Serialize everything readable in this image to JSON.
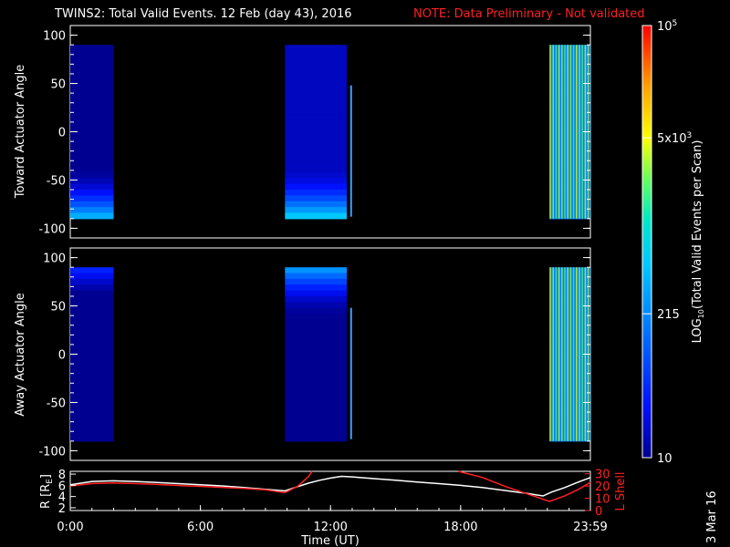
{
  "header": {
    "title": "TWINS2: Total Valid Events. 12 Feb (day  43), 2016",
    "note": "NOTE: Data Preliminary - Not validated"
  },
  "footer": {
    "date_stamp": "3 Mar 16"
  },
  "colors": {
    "background": "#000000",
    "foreground": "#ffffff",
    "note": "#ff2020",
    "l_shell": "#ff2020",
    "r_line": "#ffffff"
  },
  "chart_data": [
    {
      "type": "heatmap",
      "ylabel": "Toward Actuator Angle",
      "ylim": [
        -110,
        110
      ],
      "yticks": [
        "100",
        "50",
        "0",
        "-50",
        "-100"
      ],
      "x_range_hours": [
        0,
        23.983
      ],
      "y_range": [
        -90,
        90
      ],
      "segments": [
        {
          "start": 0.0,
          "end": 2.0,
          "mean": 1.0,
          "bottom": 2.6
        },
        {
          "start": 9.9,
          "end": 12.75,
          "mean": 1.2,
          "bottom": 2.8
        },
        {
          "start": 22.1,
          "end": 23.983,
          "mean": 2.25,
          "bottom": 2.25
        }
      ],
      "lines": [
        {
          "t": 12.95,
          "y0": -88,
          "y1": 48
        }
      ]
    },
    {
      "type": "heatmap",
      "ylabel": "Away Actuator Angle",
      "ylim": [
        -110,
        110
      ],
      "yticks": [
        "100",
        "50",
        "0",
        "-50",
        "-100"
      ],
      "x_range_hours": [
        0,
        23.983
      ],
      "y_range": [
        -90,
        90
      ],
      "segments": [
        {
          "start": 0.0,
          "end": 2.0,
          "mean": 0.75,
          "top": 1.6
        },
        {
          "start": 9.9,
          "end": 12.75,
          "mean": 1.0,
          "top": 2.4
        },
        {
          "start": 22.1,
          "end": 23.983,
          "mean": 2.25,
          "top": 2.25
        }
      ],
      "lines": [
        {
          "t": 12.95,
          "y0": -88,
          "y1": 48
        }
      ]
    },
    {
      "type": "line",
      "xlabel": "Time (UT)",
      "xticks": [
        "0:00",
        "6:00",
        "12:00",
        "18:00",
        "23:59"
      ],
      "xtick_hours": [
        0,
        6,
        12,
        18,
        23.983
      ],
      "ylabel_left": "R [R",
      "ylabel_left_sub": "E",
      "ylabel_left_end": "]",
      "yticks_left": [
        "8",
        "6",
        "4",
        "2"
      ],
      "ylim_left": [
        1.5,
        8.5
      ],
      "ylabel_right": "L Shell",
      "yticks_right": [
        "30",
        "20",
        "10",
        "0"
      ],
      "ylim_right": [
        0,
        32
      ],
      "series": [
        {
          "axis": "left",
          "x": [
            0,
            1,
            2,
            3,
            4,
            5,
            6,
            7,
            8,
            9,
            9.9,
            10.5,
            11,
            11.5,
            12,
            12.5,
            13,
            14,
            15,
            16,
            17,
            18,
            19,
            20,
            21,
            21.8,
            22.2,
            22.8,
            23.3,
            23.983
          ],
          "y": [
            6.1,
            6.7,
            6.8,
            6.7,
            6.5,
            6.3,
            6.1,
            5.9,
            5.6,
            5.3,
            5.0,
            5.8,
            6.4,
            6.9,
            7.3,
            7.6,
            7.5,
            7.2,
            6.9,
            6.6,
            6.3,
            6.0,
            5.6,
            5.1,
            4.6,
            4.1,
            4.8,
            5.6,
            6.4,
            7.4
          ]
        },
        {
          "axis": "right",
          "x": [
            0,
            1,
            2,
            3,
            4,
            5,
            6,
            7,
            8,
            9,
            9.9,
            10.5,
            11,
            11.15
          ],
          "y": [
            20,
            22,
            22.5,
            22,
            21.3,
            20.5,
            19.7,
            18.9,
            18,
            17,
            14.5,
            20,
            28,
            32
          ]
        },
        {
          "axis": "right",
          "x": [
            17.9,
            19,
            20,
            21,
            22.1,
            22.8,
            23.4,
            23.983
          ],
          "y": [
            32,
            27,
            20,
            14,
            7.5,
            12,
            17,
            23
          ]
        }
      ]
    }
  ],
  "colorbar": {
    "label_prefix": "LOG",
    "label_sub": "10",
    "label_suffix": "(Total Valid Events per Scan)",
    "ticks": [
      {
        "mant": "10",
        "exp": "5",
        "frac": 1.0
      },
      {
        "mant": "5x10",
        "exp": "3",
        "frac": 0.74
      },
      {
        "mant": "215",
        "exp": "",
        "frac": 0.333
      },
      {
        "mant": "10",
        "exp": "",
        "frac": 0.0
      }
    ],
    "log_min": 1,
    "log_max": 5
  }
}
